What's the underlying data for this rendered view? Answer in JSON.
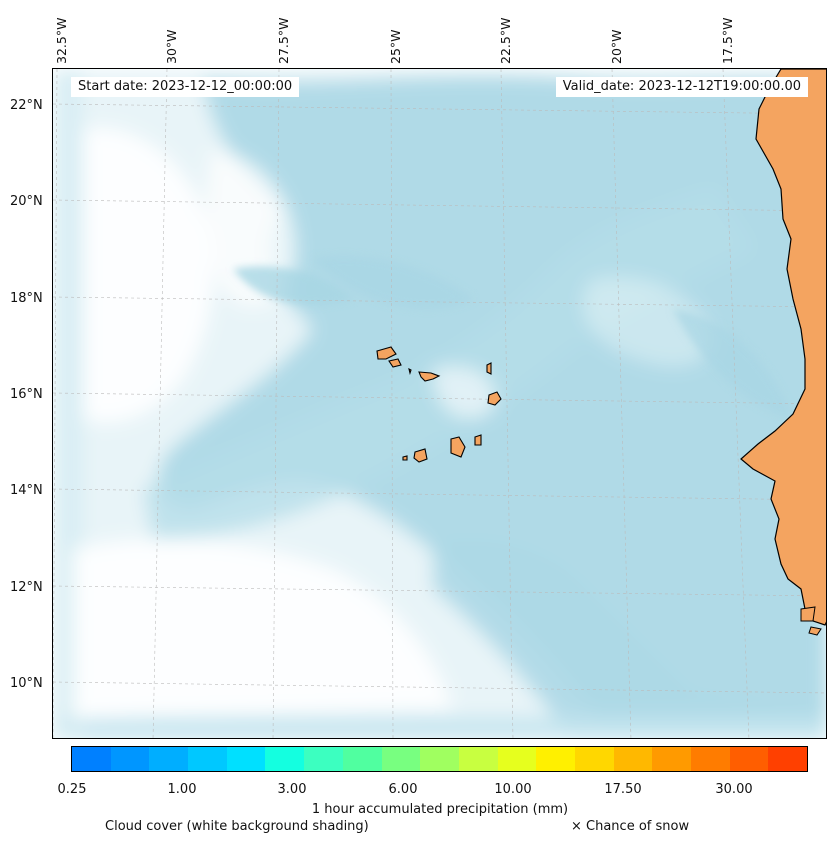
{
  "map": {
    "lon_labels": [
      "32.5°W",
      "30°W",
      "27.5°W",
      "25°W",
      "22.5°W",
      "20°W",
      "17.5°W"
    ],
    "lat_labels": [
      "22°N",
      "20°N",
      "18°N",
      "16°N",
      "14°N",
      "12°N",
      "10°N"
    ],
    "start_date": "Start date: 2023-12-12_00:00:00",
    "valid_date": "Valid_date: 2023-12-12T19:00:00.00",
    "colors": {
      "land": "#f4a460",
      "cloud": "#add8e6",
      "coastline": "#000000",
      "grid": "#bbbbbb"
    }
  },
  "colorbar": {
    "colors": [
      "#0080ff",
      "#0096ff",
      "#00aeff",
      "#00c8ff",
      "#00e0ff",
      "#14ffe0",
      "#3cffc0",
      "#50ffa0",
      "#78ff80",
      "#a0ff60",
      "#c8ff40",
      "#e6ff1e",
      "#fff000",
      "#ffd700",
      "#ffb800",
      "#ff9a00",
      "#ff7c00",
      "#ff5e00",
      "#ff4000"
    ],
    "tick_labels": [
      "0.25",
      "1.00",
      "3.00",
      "6.00",
      "10.00",
      "17.50",
      "30.00"
    ],
    "title": "1 hour accumulated precipitation (mm)"
  },
  "legend": {
    "cloud_cover": "Cloud cover (white background shading)",
    "snow": "× Chance of snow"
  }
}
